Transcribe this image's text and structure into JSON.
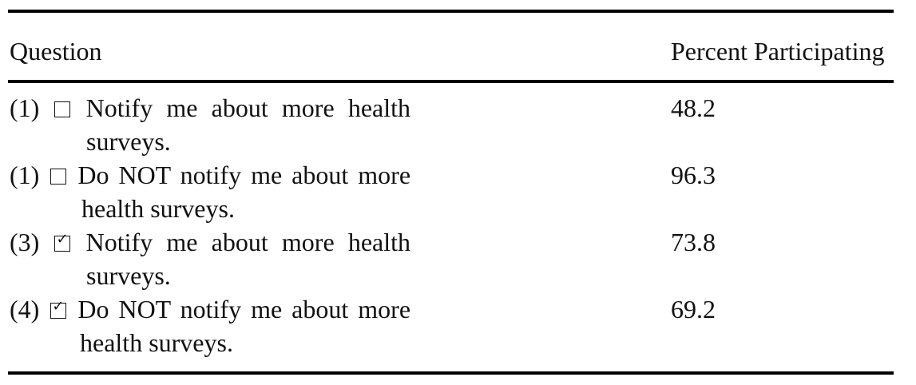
{
  "table": {
    "header": {
      "question": "Question",
      "percent": "Percent Participating"
    },
    "rows": [
      {
        "number": "(1)",
        "checked": false,
        "line1": "Notify me about more health",
        "line2": "surveys.",
        "percent": "48.2"
      },
      {
        "number": "(1)",
        "checked": false,
        "line1": "Do NOT notify me about more",
        "line2": "health surveys.",
        "percent": "96.3"
      },
      {
        "number": "(3)",
        "checked": true,
        "line1": "Notify me about more health",
        "line2": "surveys.",
        "percent": "73.8"
      },
      {
        "number": "(4)",
        "checked": true,
        "line1": "Do NOT notify me about more",
        "line2": "health surveys.",
        "percent": "69.2"
      }
    ]
  }
}
